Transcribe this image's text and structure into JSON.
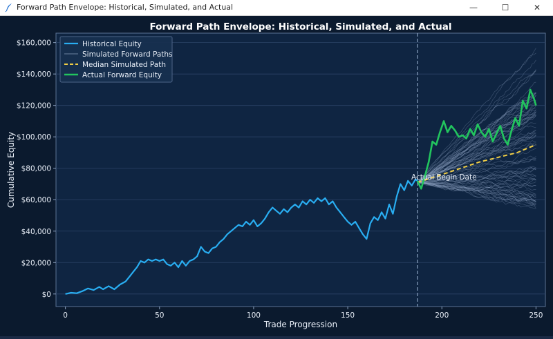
{
  "window": {
    "title": "Forward Path Envelope: Historical, Simulated, and Actual",
    "controls": {
      "minimize": "—",
      "maximize": "☐",
      "close": "✕"
    }
  },
  "colors": {
    "figure_bg": "#0b1a2e",
    "axes_bg": "#0f2542",
    "grid": "#2c4467",
    "historical": "#29aef2",
    "simulated": "#8fa3c2",
    "median": "#f2cf45",
    "actual": "#22c55e",
    "vline": "#8aa0bf",
    "text": "#e8eef7"
  },
  "chart_data": {
    "type": "line",
    "title": "Forward Path Envelope: Historical, Simulated, and Actual",
    "xlabel": "Trade Progression",
    "ylabel": "Cumulative Equity",
    "xlim": [
      -5,
      255
    ],
    "ylim": [
      -8000,
      166000
    ],
    "xticks": [
      0,
      50,
      100,
      150,
      200,
      250
    ],
    "xtick_labels": [
      "0",
      "50",
      "100",
      "150",
      "200",
      "250"
    ],
    "yticks": [
      0,
      20000,
      40000,
      60000,
      80000,
      100000,
      120000,
      140000,
      160000
    ],
    "ytick_labels": [
      "$0",
      "$20,000",
      "$40,000",
      "$60,000",
      "$80,000",
      "$100,000",
      "$120,000",
      "$140,000",
      "$160,000"
    ],
    "grid": true,
    "legend_position": "top-left",
    "legend": [
      "Historical Equity",
      "Simulated Forward Paths",
      "Median Simulated Path",
      "Actual Forward Equity"
    ],
    "vline": {
      "x": 187,
      "label": "Actual Begin Date"
    },
    "historical": {
      "x": [
        0,
        3,
        6,
        9,
        12,
        15,
        18,
        20,
        23,
        26,
        29,
        32,
        34,
        36,
        38,
        40,
        42,
        44,
        46,
        48,
        50,
        52,
        54,
        56,
        58,
        60,
        62,
        64,
        66,
        68,
        70,
        72,
        74,
        76,
        78,
        80,
        82,
        84,
        86,
        88,
        90,
        92,
        94,
        96,
        98,
        100,
        102,
        104,
        106,
        108,
        110,
        112,
        114,
        116,
        118,
        120,
        122,
        124,
        126,
        128,
        130,
        132,
        134,
        136,
        138,
        140,
        142,
        144,
        146,
        148,
        150,
        152,
        154,
        156,
        158,
        160,
        162,
        164,
        166,
        168,
        170,
        172,
        174,
        176,
        178,
        180,
        182,
        184,
        186,
        187
      ],
      "y": [
        0,
        800,
        500,
        1800,
        3500,
        2500,
        4500,
        3000,
        5000,
        3000,
        6000,
        8000,
        11000,
        14000,
        17000,
        21000,
        20000,
        22000,
        21000,
        22000,
        21000,
        22000,
        19000,
        18000,
        20000,
        17000,
        21000,
        18000,
        21000,
        22000,
        24000,
        30000,
        27000,
        26000,
        29000,
        30000,
        33000,
        35000,
        38000,
        40000,
        42000,
        44000,
        43000,
        46000,
        44000,
        47000,
        43000,
        45000,
        48000,
        52000,
        55000,
        53000,
        51000,
        54000,
        52000,
        55000,
        57000,
        55000,
        59000,
        57000,
        60000,
        58000,
        61000,
        59000,
        61000,
        57000,
        59000,
        55000,
        52000,
        49000,
        46000,
        44000,
        46000,
        42000,
        38000,
        35000,
        45000,
        49000,
        47000,
        52000,
        48000,
        57000,
        51000,
        62000,
        70000,
        66000,
        72000,
        69000,
        73000,
        72000
      ]
    },
    "median": {
      "x": [
        187,
        200,
        210,
        220,
        230,
        240,
        250
      ],
      "y": [
        71000,
        76000,
        80000,
        84000,
        87000,
        90000,
        95000
      ]
    },
    "actual": {
      "x": [
        187,
        189,
        191,
        193,
        195,
        197,
        199,
        201,
        203,
        205,
        207,
        209,
        211,
        213,
        215,
        217,
        219,
        221,
        223,
        225,
        227,
        229,
        231,
        233,
        235,
        237,
        239,
        241,
        243,
        245,
        247,
        249,
        250
      ],
      "y": [
        72000,
        67000,
        75000,
        84000,
        97000,
        95000,
        103000,
        110000,
        103000,
        107000,
        104000,
        100000,
        101000,
        99000,
        105000,
        101000,
        108000,
        103000,
        100000,
        105000,
        97000,
        102000,
        107000,
        99000,
        95000,
        104000,
        112000,
        107000,
        123000,
        118000,
        130000,
        124000,
        120000
      ]
    },
    "simulated": {
      "count": 80,
      "start_x": 187,
      "end_x": 250,
      "start_y": 71000,
      "end_range": [
        57000,
        157000
      ]
    }
  }
}
